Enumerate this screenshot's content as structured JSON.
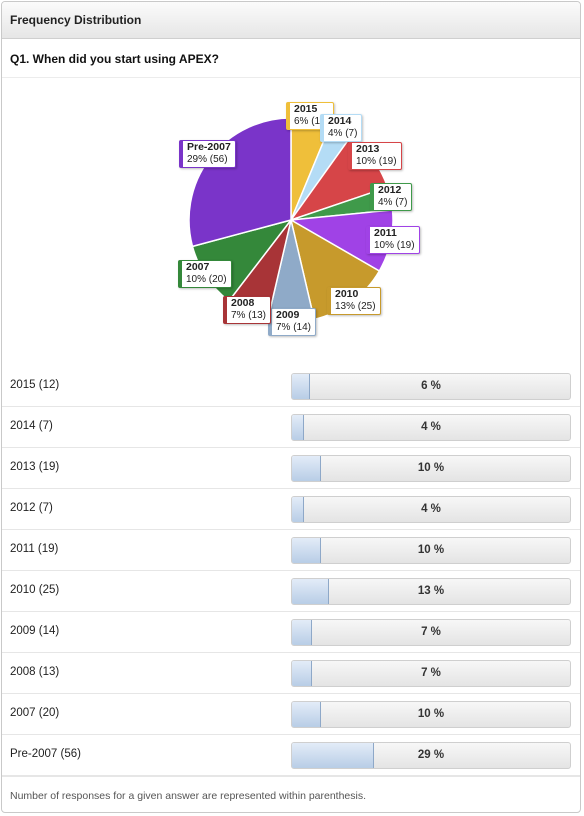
{
  "panel": {
    "title": "Frequency Distribution"
  },
  "question": {
    "text": "Q1. When did you start using APEX?"
  },
  "chart_data": {
    "type": "pie",
    "title": "Q1. When did you start using APEX?",
    "slices": [
      {
        "name": "2015",
        "count": 12,
        "percent": 6,
        "color": "#efbf3a",
        "label": "2015",
        "detail": "6% (12)"
      },
      {
        "name": "2014",
        "count": 7,
        "percent": 4,
        "color": "#b4dcf5",
        "label": "2014",
        "detail": "4% (7)"
      },
      {
        "name": "2013",
        "count": 19,
        "percent": 10,
        "color": "#d64548",
        "label": "2013",
        "detail": "10% (19)"
      },
      {
        "name": "2012",
        "count": 7,
        "percent": 4,
        "color": "#3f9a4a",
        "label": "2012",
        "detail": "4% (7)"
      },
      {
        "name": "2011",
        "count": 19,
        "percent": 10,
        "color": "#a042e6",
        "label": "2011",
        "detail": "10% (19)"
      },
      {
        "name": "2010",
        "count": 25,
        "percent": 13,
        "color": "#c79a2c",
        "label": "2010",
        "detail": "13% (25)"
      },
      {
        "name": "2009",
        "count": 14,
        "percent": 7,
        "color": "#8faac8",
        "label": "2009",
        "detail": "7% (14)"
      },
      {
        "name": "2008",
        "count": 13,
        "percent": 7,
        "color": "#a83437",
        "label": "2008",
        "detail": "7% (13)"
      },
      {
        "name": "2007",
        "count": 20,
        "percent": 10,
        "color": "#34883a",
        "label": "2007",
        "detail": "10% (20)"
      },
      {
        "name": "Pre-2007",
        "count": 56,
        "percent": 29,
        "color": "#7a34c9",
        "label": "Pre-2007",
        "detail": "29% (56)"
      }
    ]
  },
  "rows": [
    {
      "label": "2015 (12)",
      "pct_text": "6 %",
      "fraction": 0.06
    },
    {
      "label": "2014 (7)",
      "pct_text": "4 %",
      "fraction": 0.04
    },
    {
      "label": "2013 (19)",
      "pct_text": "10 %",
      "fraction": 0.1
    },
    {
      "label": "2012 (7)",
      "pct_text": "4 %",
      "fraction": 0.04
    },
    {
      "label": "2011 (19)",
      "pct_text": "10 %",
      "fraction": 0.1
    },
    {
      "label": "2010 (25)",
      "pct_text": "13 %",
      "fraction": 0.13
    },
    {
      "label": "2009 (14)",
      "pct_text": "7 %",
      "fraction": 0.07
    },
    {
      "label": "2008 (13)",
      "pct_text": "7 %",
      "fraction": 0.07
    },
    {
      "label": "2007 (20)",
      "pct_text": "10 %",
      "fraction": 0.1
    },
    {
      "label": "Pre-2007 (56)",
      "pct_text": "29 %",
      "fraction": 0.29
    }
  ],
  "footnote": "Number of responses for a given answer are represented within parenthesis."
}
